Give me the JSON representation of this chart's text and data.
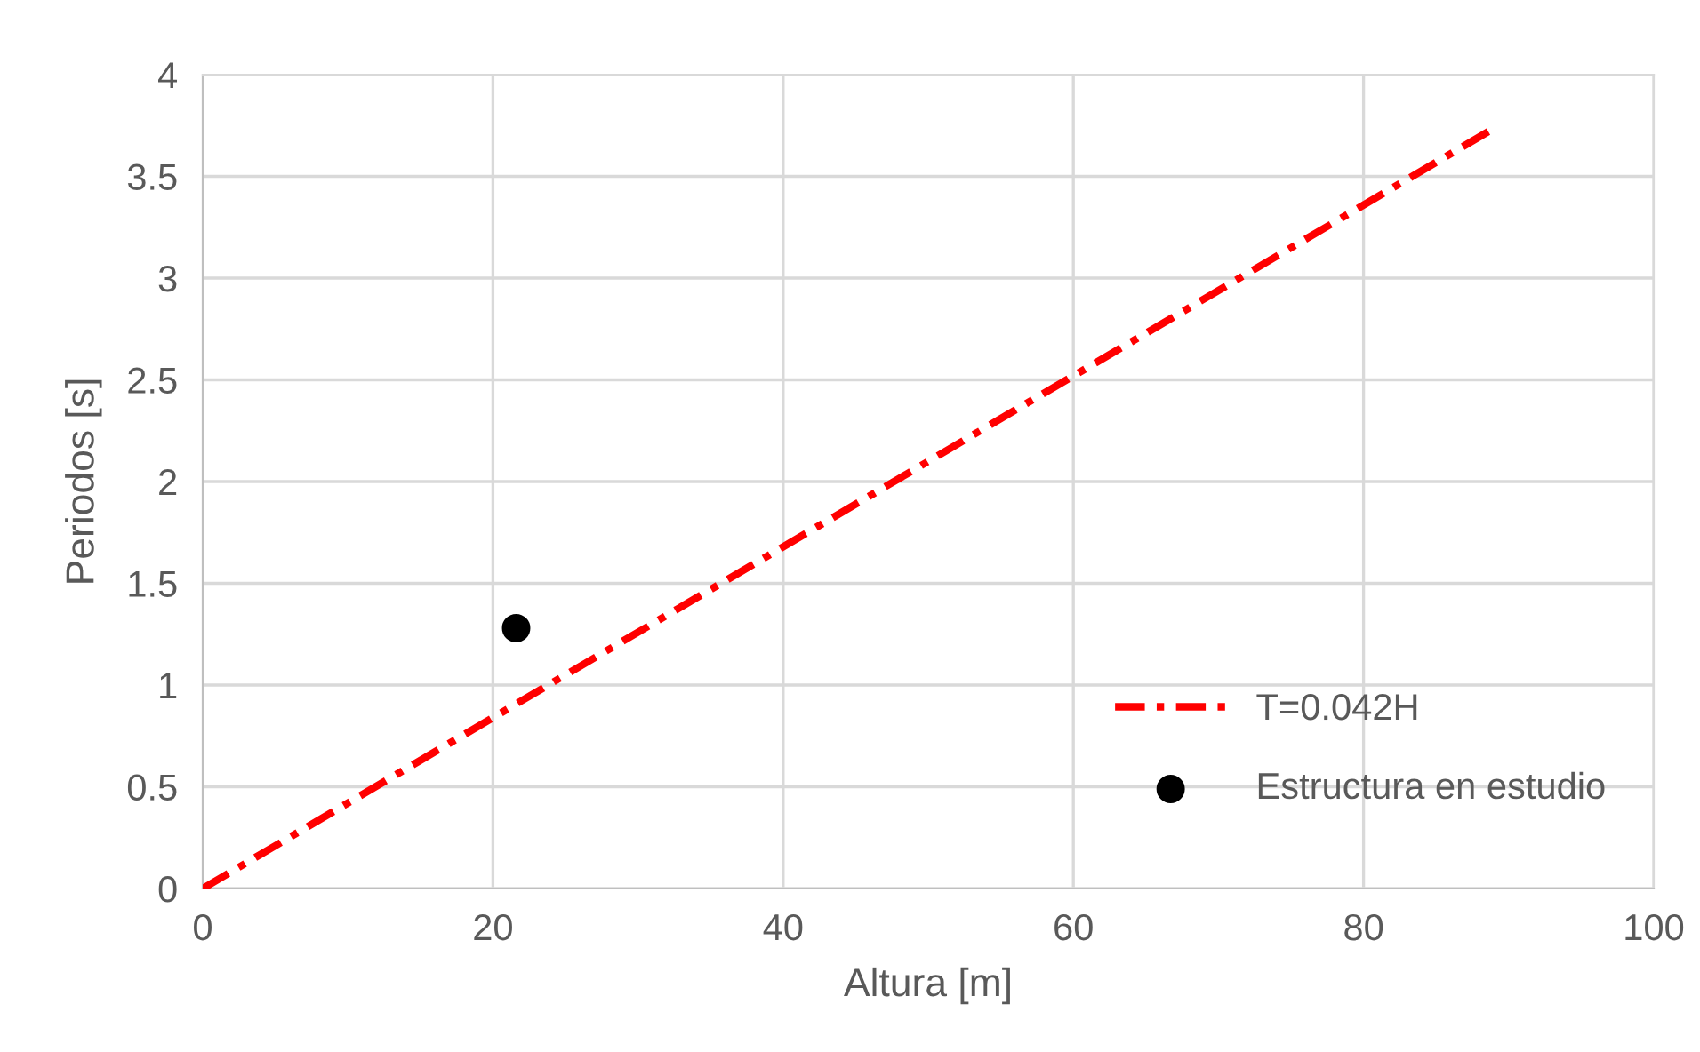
{
  "chart_data": {
    "type": "line",
    "xlabel": "Altura [m]",
    "ylabel": "Periodos [s]",
    "xlim": [
      0,
      100
    ],
    "xticks": [
      0,
      20,
      40,
      60,
      80,
      100
    ],
    "ylim": [
      0,
      4
    ],
    "yticks": [
      0,
      {
        "value": 0.5,
        "label": "0.5"
      },
      1,
      {
        "value": 1.5,
        "label": "1.5"
      },
      2,
      {
        "value": 2.5,
        "label": "2.5"
      },
      3,
      {
        "value": 3.5,
        "label": "3.5"
      },
      4
    ],
    "grid": true,
    "legend": "bottom right",
    "series": [
      {
        "name": "T=0.042H",
        "color": "#ff0000",
        "line_style": "dashdot",
        "marker": "none",
        "x": [
          0,
          88.6
        ],
        "values": [
          0,
          3.72
        ]
      },
      {
        "name": "Estructura en estudio",
        "type": "scatter",
        "color": "#000000",
        "marker": "circle",
        "x": [
          21.6
        ],
        "values": [
          1.28
        ]
      }
    ]
  }
}
